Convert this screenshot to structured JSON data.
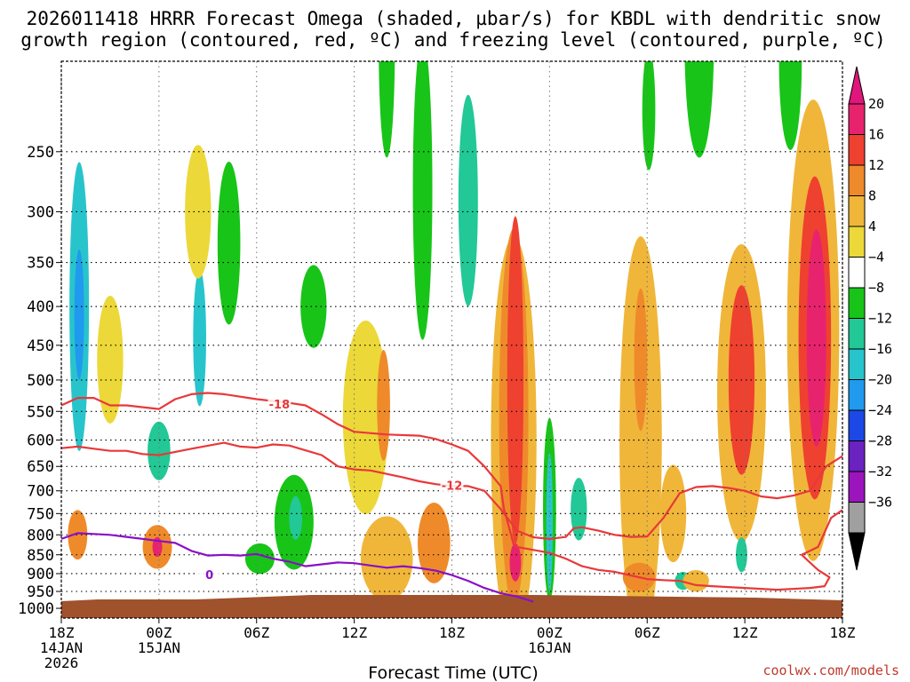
{
  "header": {
    "title_line1": "2026011418 HRRR Forecast Omega (shaded, µbar/s) for KBDL with dendritic snow",
    "title_line2": "growth region (contoured, red, ºC) and freezing level (contoured, purple, ºC)"
  },
  "footer": {
    "axis_title": "Forecast Time (UTC)",
    "credit": "coolwx.com/models"
  },
  "chart_data": {
    "type": "heatmap",
    "title": "2026011418 HRRR Forecast Omega (shaded, µbar/s) for KBDL with dendritic snow growth region (contoured, red, ºC) and freezing level (contoured, purple, ºC)",
    "xlabel": "Forecast Time (UTC)",
    "ylabel": "",
    "x_hours_range": [
      0,
      48
    ],
    "y_pressure_range": [
      190,
      1030
    ],
    "x_ticks": [
      {
        "hour": 0,
        "l1": "18Z",
        "l2": "14JAN",
        "l3": "2026"
      },
      {
        "hour": 6,
        "l1": "00Z",
        "l2": "15JAN",
        "l3": ""
      },
      {
        "hour": 12,
        "l1": "06Z",
        "l2": "",
        "l3": ""
      },
      {
        "hour": 18,
        "l1": "12Z",
        "l2": "",
        "l3": ""
      },
      {
        "hour": 24,
        "l1": "18Z",
        "l2": "",
        "l3": ""
      },
      {
        "hour": 30,
        "l1": "00Z",
        "l2": "16JAN",
        "l3": ""
      },
      {
        "hour": 36,
        "l1": "06Z",
        "l2": "",
        "l3": ""
      },
      {
        "hour": 42,
        "l1": "12Z",
        "l2": "",
        "l3": ""
      },
      {
        "hour": 48,
        "l1": "18Z",
        "l2": "",
        "l3": ""
      }
    ],
    "y_ticks": [
      250,
      300,
      350,
      400,
      450,
      500,
      550,
      600,
      650,
      700,
      750,
      800,
      850,
      900,
      950,
      1000
    ],
    "colorbar": {
      "labels": [
        "20",
        "16",
        "12",
        "8",
        "4",
        "−4",
        "−8",
        "−12",
        "−16",
        "−20",
        "−24",
        "−28",
        "−32",
        "−36"
      ],
      "bins": [
        {
          "lo": 16,
          "hi": 20,
          "color": "#e8236e"
        },
        {
          "lo": 12,
          "hi": 16,
          "color": "#ee4130"
        },
        {
          "lo": 8,
          "hi": 12,
          "color": "#ef8a2a"
        },
        {
          "lo": 4,
          "hi": 8,
          "color": "#f0b63a"
        },
        {
          "lo": 0,
          "hi": 4,
          "color": "#ecd838"
        },
        {
          "lo": -4,
          "hi": 4,
          "color": "#ffffff"
        },
        {
          "lo": -8,
          "hi": -4,
          "color": "#18c418"
        },
        {
          "lo": -12,
          "hi": -8,
          "color": "#22c896"
        },
        {
          "lo": -16,
          "hi": -12,
          "color": "#28c4cc"
        },
        {
          "lo": -20,
          "hi": -16,
          "color": "#1f9aee"
        },
        {
          "lo": -24,
          "hi": -20,
          "color": "#1c48e6"
        },
        {
          "lo": -28,
          "hi": -24,
          "color": "#6a22c0"
        },
        {
          "lo": -32,
          "hi": -28,
          "color": "#9c14bc"
        },
        {
          "lo": -36,
          "hi": -32,
          "color": "#a0a0a0"
        }
      ],
      "top_color": "#e0167c",
      "bottom_color": "#000000"
    },
    "omega_cells": [
      {
        "t": 1.1,
        "p": 400,
        "dt": 0.6,
        "dp": 165,
        "v": -14
      },
      {
        "t": 1.1,
        "p": 410,
        "dt": 0.3,
        "dp": 80,
        "v": -19
      },
      {
        "t": 3.0,
        "p": 470,
        "dt": 0.8,
        "dp": 90,
        "v": 2
      },
      {
        "t": 6.0,
        "p": 620,
        "dt": 0.7,
        "dp": 55,
        "v": -12
      },
      {
        "t": 5.9,
        "p": 830,
        "dt": 0.9,
        "dp": 55,
        "v": 10
      },
      {
        "t": 5.9,
        "p": 830,
        "dt": 0.3,
        "dp": 25,
        "v": 16
      },
      {
        "t": 1.0,
        "p": 800,
        "dt": 0.6,
        "dp": 60,
        "v": 8
      },
      {
        "t": 8.5,
        "p": 440,
        "dt": 0.4,
        "dp": 90,
        "v": -14
      },
      {
        "t": 8.4,
        "p": 300,
        "dt": 0.8,
        "dp": 60,
        "v": 2
      },
      {
        "t": 10.3,
        "p": 330,
        "dt": 0.7,
        "dp": 80,
        "v": -6
      },
      {
        "t": 14.3,
        "p": 770,
        "dt": 1.2,
        "dp": 110,
        "v": -8
      },
      {
        "t": 14.4,
        "p": 760,
        "dt": 0.4,
        "dp": 50,
        "v": -12
      },
      {
        "t": 12.2,
        "p": 860,
        "dt": 0.9,
        "dp": 40,
        "v": -6
      },
      {
        "t": 15.5,
        "p": 400,
        "dt": 0.8,
        "dp": 50,
        "v": -6
      },
      {
        "t": 18.7,
        "p": 560,
        "dt": 1.4,
        "dp": 160,
        "v": 3
      },
      {
        "t": 19.8,
        "p": 540,
        "dt": 0.4,
        "dp": 90,
        "v": 9
      },
      {
        "t": 20.0,
        "p": 180,
        "dt": 0.5,
        "dp": 60,
        "v": -6
      },
      {
        "t": 22.2,
        "p": 280,
        "dt": 0.6,
        "dp": 120,
        "v": -6
      },
      {
        "t": 25.0,
        "p": 290,
        "dt": 0.6,
        "dp": 90,
        "v": -12
      },
      {
        "t": 20.0,
        "p": 860,
        "dt": 1.6,
        "dp": 110,
        "v": 4
      },
      {
        "t": 22.9,
        "p": 820,
        "dt": 1.0,
        "dp": 100,
        "v": 8
      },
      {
        "t": 27.8,
        "p": 600,
        "dt": 1.4,
        "dp": 330,
        "v": 4
      },
      {
        "t": 27.8,
        "p": 560,
        "dt": 0.9,
        "dp": 290,
        "v": 9
      },
      {
        "t": 27.9,
        "p": 500,
        "dt": 0.5,
        "dp": 230,
        "v": 13
      },
      {
        "t": 27.9,
        "p": 870,
        "dt": 0.35,
        "dp": 50,
        "v": 17
      },
      {
        "t": 30.0,
        "p": 740,
        "dt": 0.4,
        "dp": 200,
        "v": -8
      },
      {
        "t": 30.0,
        "p": 770,
        "dt": 0.2,
        "dp": 160,
        "v": -14
      },
      {
        "t": 31.8,
        "p": 740,
        "dt": 0.5,
        "dp": 70,
        "v": -10
      },
      {
        "t": 35.6,
        "p": 600,
        "dt": 1.3,
        "dp": 330,
        "v": 4
      },
      {
        "t": 35.6,
        "p": 470,
        "dt": 0.4,
        "dp": 100,
        "v": 9
      },
      {
        "t": 37.6,
        "p": 750,
        "dt": 0.8,
        "dp": 110,
        "v": 7
      },
      {
        "t": 35.5,
        "p": 910,
        "dt": 1.0,
        "dp": 40,
        "v": 8
      },
      {
        "t": 38.2,
        "p": 920,
        "dt": 0.5,
        "dp": 25,
        "v": -10
      },
      {
        "t": 39.0,
        "p": 920,
        "dt": 0.8,
        "dp": 30,
        "v": 6
      },
      {
        "t": 41.8,
        "p": 520,
        "dt": 1.5,
        "dp": 220,
        "v": 5
      },
      {
        "t": 41.8,
        "p": 500,
        "dt": 0.8,
        "dp": 140,
        "v": 14
      },
      {
        "t": 41.8,
        "p": 850,
        "dt": 0.35,
        "dp": 45,
        "v": -10
      },
      {
        "t": 46.2,
        "p": 430,
        "dt": 1.6,
        "dp": 260,
        "v": 6
      },
      {
        "t": 46.3,
        "p": 440,
        "dt": 1.0,
        "dp": 200,
        "v": 12
      },
      {
        "t": 46.4,
        "p": 440,
        "dt": 0.6,
        "dp": 140,
        "v": 18
      },
      {
        "t": 36.1,
        "p": 220,
        "dt": 0.4,
        "dp": 40,
        "v": -6
      },
      {
        "t": 39.2,
        "p": 180,
        "dt": 0.9,
        "dp": 60,
        "v": -6
      },
      {
        "t": 44.8,
        "p": 190,
        "dt": 0.7,
        "dp": 50,
        "v": -6
      }
    ],
    "contours": [
      {
        "name": "dendritic-top-minus18",
        "label": "-18",
        "color": "#e8383a",
        "label_hour": 13.4,
        "label_p": 538,
        "points": [
          [
            0,
            540
          ],
          [
            1,
            528
          ],
          [
            2,
            528
          ],
          [
            3,
            540
          ],
          [
            4,
            540
          ],
          [
            6,
            546
          ],
          [
            7,
            530
          ],
          [
            8,
            522
          ],
          [
            9,
            520
          ],
          [
            10,
            522
          ],
          [
            12,
            530
          ],
          [
            14,
            536
          ],
          [
            15,
            540
          ],
          [
            16,
            555
          ],
          [
            17,
            572
          ],
          [
            18,
            585
          ],
          [
            20,
            590
          ],
          [
            22,
            592
          ],
          [
            23,
            598
          ],
          [
            24,
            608
          ],
          [
            25,
            620
          ],
          [
            26,
            650
          ],
          [
            27,
            690
          ],
          [
            27.2,
            740
          ],
          [
            27.5,
            780
          ],
          [
            27.8,
            825
          ],
          [
            28,
            830
          ],
          [
            30,
            845
          ],
          [
            31,
            860
          ],
          [
            32,
            880
          ],
          [
            33,
            890
          ],
          [
            34,
            895
          ],
          [
            35,
            905
          ],
          [
            36,
            915
          ],
          [
            37,
            918
          ],
          [
            38,
            920
          ],
          [
            39,
            932
          ],
          [
            40,
            935
          ],
          [
            42,
            940
          ],
          [
            44,
            945
          ],
          [
            46,
            940
          ],
          [
            46.9,
            935
          ],
          [
            47.2,
            910
          ],
          [
            46.5,
            890
          ],
          [
            46,
            870
          ],
          [
            45.5,
            850
          ],
          [
            46.5,
            830
          ],
          [
            47.3,
            760
          ],
          [
            48,
            742
          ]
        ]
      },
      {
        "name": "dendritic-bottom-minus12",
        "label": "-12",
        "color": "#e8383a",
        "label_hour": 24.0,
        "label_p": 688,
        "points": [
          [
            0,
            615
          ],
          [
            1,
            612
          ],
          [
            2,
            616
          ],
          [
            3,
            620
          ],
          [
            4,
            620
          ],
          [
            5,
            626
          ],
          [
            6,
            628
          ],
          [
            8,
            616
          ],
          [
            10,
            605
          ],
          [
            11,
            612
          ],
          [
            12,
            614
          ],
          [
            13,
            608
          ],
          [
            14,
            610
          ],
          [
            16,
            628
          ],
          [
            17,
            650
          ],
          [
            18,
            656
          ],
          [
            19,
            658
          ],
          [
            20,
            665
          ],
          [
            21,
            672
          ],
          [
            22,
            680
          ],
          [
            23,
            686
          ],
          [
            24,
            690
          ],
          [
            25,
            690
          ],
          [
            26,
            700
          ],
          [
            27,
            740
          ],
          [
            28,
            790
          ],
          [
            29,
            806
          ],
          [
            30,
            810
          ],
          [
            31,
            805
          ],
          [
            31.5,
            784
          ],
          [
            32,
            782
          ],
          [
            33,
            790
          ],
          [
            34,
            800
          ],
          [
            35,
            805
          ],
          [
            36,
            804
          ],
          [
            37,
            760
          ],
          [
            38,
            705
          ],
          [
            39,
            692
          ],
          [
            40,
            690
          ],
          [
            41,
            694
          ],
          [
            42,
            700
          ],
          [
            43,
            712
          ],
          [
            44,
            716
          ],
          [
            45,
            710
          ],
          [
            46,
            700
          ],
          [
            47,
            650
          ],
          [
            48,
            630
          ]
        ]
      },
      {
        "name": "freezing-level",
        "label": "0",
        "color": "#8a0fc7",
        "label_hour": 9.1,
        "label_p": 902,
        "points": [
          [
            0,
            810
          ],
          [
            1,
            796
          ],
          [
            2,
            798
          ],
          [
            3,
            800
          ],
          [
            4,
            805
          ],
          [
            5,
            810
          ],
          [
            6,
            815
          ],
          [
            7,
            820
          ],
          [
            8,
            840
          ],
          [
            9,
            852
          ],
          [
            10,
            850
          ],
          [
            11,
            852
          ],
          [
            12,
            848
          ],
          [
            13,
            860
          ],
          [
            14,
            868
          ],
          [
            15,
            880
          ],
          [
            16,
            875
          ],
          [
            17,
            870
          ],
          [
            18,
            872
          ],
          [
            19,
            878
          ],
          [
            20,
            884
          ],
          [
            21,
            880
          ],
          [
            22,
            885
          ],
          [
            23,
            892
          ],
          [
            24,
            904
          ],
          [
            25,
            920
          ],
          [
            26,
            940
          ],
          [
            27,
            955
          ],
          [
            28,
            965
          ],
          [
            29,
            980
          ]
        ]
      }
    ],
    "contour_labels": [
      "-18",
      "-12",
      "0"
    ]
  }
}
